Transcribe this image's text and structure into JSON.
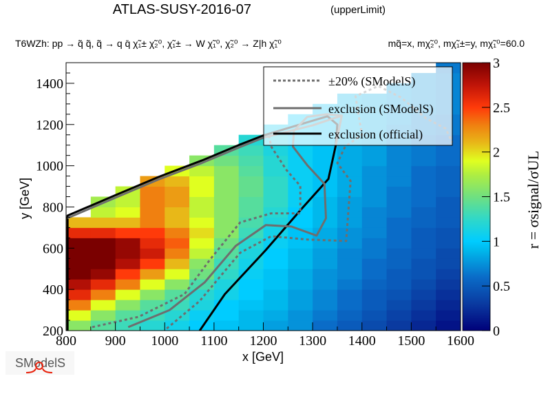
{
  "chart_data": {
    "type": "heatmap",
    "title": "ATLAS-SUSY-2016-07",
    "title_suffix": "(upperLimit)",
    "subtitle": "T6WZh: pp  → q̃ q̃, q̃  → q q̄ χ̃₁± χ̃₂⁰, χ̃₁± → W χ̃₁⁰, χ̃₂⁰ → Z|h  χ̃₁⁰",
    "mass_text": "mq̃=x, mχ̃₂⁰, mχ̃₁±=y, mχ̃₁⁰=60.0",
    "xlabel": "x [GeV]",
    "ylabel": "y [GeV]",
    "zlabel": "r = σsignal/σUL",
    "xlim": [
      800,
      1600
    ],
    "ylim": [
      200,
      1500
    ],
    "zlim": [
      0,
      3
    ],
    "xticks": [
      800,
      900,
      1000,
      1100,
      1200,
      1300,
      1400,
      1500,
      1600
    ],
    "yticks": [
      200,
      400,
      600,
      800,
      1000,
      1200,
      1400
    ],
    "zticks": [
      "0",
      "0.5",
      "1",
      "1.5",
      "2",
      "2.5",
      "3"
    ],
    "bin_size": 50,
    "x_centers": [
      825,
      875,
      925,
      975,
      1025,
      1075,
      1125,
      1175,
      1225,
      1275,
      1325,
      1375,
      1425,
      1475,
      1525,
      1575
    ],
    "y_centers": [
      225,
      275,
      325,
      375,
      425,
      475,
      525,
      575,
      625,
      675,
      725,
      775,
      825,
      875,
      925,
      975,
      1025,
      1075,
      1125,
      1175,
      1225,
      1275,
      1325,
      1375,
      1425,
      1475
    ],
    "z": [
      [
        1.6,
        1.4,
        1.3,
        1.2,
        1.1,
        1.0,
        0.95,
        0.9,
        0.8,
        0.75,
        0.6,
        0.5,
        0.4,
        0.3,
        0.2,
        0.1
      ],
      [
        1.9,
        1.6,
        1.4,
        1.3,
        1.2,
        1.05,
        1.0,
        0.9,
        0.85,
        0.75,
        0.65,
        0.55,
        0.45,
        0.35,
        0.25,
        0.15
      ],
      [
        2.3,
        1.9,
        1.6,
        1.4,
        1.3,
        1.15,
        1.0,
        0.95,
        0.9,
        0.8,
        0.7,
        0.6,
        0.5,
        0.4,
        0.3,
        0.2
      ],
      [
        2.6,
        2.3,
        1.9,
        1.6,
        1.4,
        1.2,
        1.1,
        1.0,
        0.9,
        0.8,
        0.7,
        0.6,
        0.5,
        0.45,
        0.35,
        0.25
      ],
      [
        2.8,
        2.6,
        2.3,
        1.9,
        1.6,
        1.35,
        1.15,
        1.0,
        0.95,
        0.85,
        0.75,
        0.65,
        0.55,
        0.5,
        0.4,
        0.3
      ],
      [
        3.0,
        2.9,
        2.5,
        2.2,
        1.9,
        1.5,
        1.25,
        1.05,
        0.95,
        0.85,
        0.75,
        0.7,
        0.6,
        0.5,
        0.45,
        0.35
      ],
      [
        3.0,
        3.0,
        2.8,
        2.5,
        2.1,
        1.6,
        1.3,
        1.1,
        1.0,
        0.9,
        0.8,
        0.7,
        0.6,
        0.55,
        0.45,
        0.4
      ],
      [
        3.0,
        3.0,
        2.9,
        2.7,
        2.3,
        1.8,
        1.4,
        1.15,
        1.0,
        0.9,
        0.8,
        0.7,
        0.65,
        0.55,
        0.5,
        0.4
      ],
      [
        3.0,
        3.0,
        2.9,
        2.6,
        2.4,
        1.9,
        1.5,
        1.2,
        1.05,
        0.95,
        0.85,
        0.75,
        0.65,
        0.6,
        0.5,
        0.45
      ],
      [
        2.6,
        2.6,
        2.5,
        2.5,
        2.3,
        2.0,
        1.6,
        1.3,
        1.1,
        0.95,
        0.85,
        0.75,
        0.7,
        0.6,
        0.5,
        0.45
      ],
      [
        2.1,
        2.1,
        2.1,
        2.3,
        2.1,
        1.9,
        1.6,
        1.35,
        1.15,
        1.0,
        0.9,
        0.8,
        0.7,
        0.6,
        0.55,
        0.5
      ],
      [
        null,
        1.8,
        1.9,
        2.3,
        2.1,
        1.8,
        1.6,
        1.4,
        1.2,
        1.0,
        0.9,
        0.8,
        0.7,
        0.65,
        0.55,
        0.5
      ],
      [
        null,
        1.7,
        1.8,
        2.3,
        2.2,
        1.8,
        1.6,
        1.4,
        1.25,
        1.05,
        0.9,
        0.8,
        0.75,
        0.65,
        0.6,
        0.5
      ],
      [
        null,
        null,
        1.8,
        2.3,
        2.2,
        1.9,
        1.6,
        1.45,
        1.25,
        1.05,
        0.95,
        0.85,
        0.75,
        0.65,
        0.6,
        0.55
      ],
      [
        null,
        null,
        null,
        2.2,
        2.1,
        1.9,
        1.6,
        1.45,
        1.25,
        1.05,
        0.95,
        0.85,
        0.75,
        0.7,
        0.6,
        0.55
      ],
      [
        null,
        null,
        null,
        null,
        1.9,
        1.8,
        1.6,
        1.4,
        1.2,
        1.05,
        0.95,
        0.85,
        0.75,
        0.7,
        0.6,
        0.55
      ],
      [
        null,
        null,
        null,
        null,
        null,
        1.6,
        1.5,
        1.35,
        1.2,
        1.05,
        0.95,
        0.85,
        0.8,
        0.7,
        0.65,
        0.6
      ],
      [
        null,
        null,
        null,
        null,
        null,
        null,
        1.4,
        1.3,
        1.15,
        1.05,
        0.95,
        0.85,
        0.8,
        0.7,
        0.65,
        0.6
      ],
      [
        null,
        null,
        null,
        null,
        null,
        null,
        null,
        1.2,
        1.1,
        1.0,
        0.95,
        0.9,
        0.85,
        0.75,
        0.65,
        0.6
      ],
      [
        null,
        null,
        null,
        null,
        null,
        null,
        null,
        null,
        1.05,
        1.0,
        0.95,
        0.9,
        0.85,
        0.75,
        0.7,
        0.65
      ],
      [
        null,
        null,
        null,
        null,
        null,
        null,
        null,
        null,
        null,
        1.0,
        0.95,
        0.9,
        0.85,
        0.8,
        0.7,
        0.65
      ],
      [
        null,
        null,
        null,
        null,
        null,
        null,
        null,
        null,
        null,
        null,
        0.95,
        0.9,
        0.85,
        0.8,
        0.75,
        0.7
      ],
      [
        null,
        null,
        null,
        null,
        null,
        null,
        null,
        null,
        null,
        null,
        null,
        0.9,
        0.85,
        0.8,
        0.75,
        0.7
      ],
      [
        null,
        null,
        null,
        null,
        null,
        null,
        null,
        null,
        null,
        null,
        null,
        null,
        null,
        0.8,
        0.75,
        0.7
      ],
      [
        null,
        null,
        null,
        null,
        null,
        null,
        null,
        null,
        null,
        null,
        null,
        null,
        null,
        null,
        0.75,
        0.7
      ],
      [
        null,
        null,
        null,
        null,
        null,
        null,
        null,
        null,
        null,
        null,
        null,
        null,
        null,
        null,
        null,
        0.65
      ]
    ],
    "contours": [
      {
        "name": "exclusion (official)",
        "style": "solid",
        "color": "#000000",
        "points": [
          [
            1071,
            200
          ],
          [
            1122,
            377
          ],
          [
            1205,
            591
          ],
          [
            1278,
            792
          ],
          [
            1332,
            936
          ],
          [
            1347,
            1100
          ],
          [
            1350,
            1200
          ],
          [
            1330,
            1240
          ],
          [
            1260,
            1190
          ],
          [
            1200,
            1147
          ],
          [
            1153,
            1103
          ],
          [
            1076,
            1026
          ],
          [
            988,
            946
          ],
          [
            895,
            852
          ],
          [
            803,
            758
          ],
          [
            803,
            200
          ]
        ]
      },
      {
        "name": "exclusion (SModelS)",
        "style": "solid",
        "color": "#6e6e6e",
        "points": [
          [
            926,
            217
          ],
          [
            1010,
            300
          ],
          [
            1081,
            434
          ],
          [
            1144,
            611
          ],
          [
            1205,
            712
          ],
          [
            1257,
            705
          ],
          [
            1308,
            661
          ],
          [
            1327,
            745
          ],
          [
            1324,
            912
          ],
          [
            1289,
            1003
          ],
          [
            1260,
            1093
          ],
          [
            1262,
            1170
          ],
          [
            1289,
            1237
          ],
          [
            1329,
            1250
          ],
          [
            1359,
            1243
          ],
          [
            1353,
            1170
          ],
          [
            1347,
            1100
          ]
        ]
      },
      {
        "name": "exclusion (SModelS) upper edge",
        "style": "solid",
        "color": "#6e6e6e",
        "points": [
          [
            803,
            746
          ],
          [
            895,
            840
          ],
          [
            988,
            934
          ],
          [
            1076,
            1014
          ],
          [
            1153,
            1091
          ],
          [
            1200,
            1136
          ],
          [
            1300,
            1196
          ],
          [
            1359,
            1243
          ]
        ]
      },
      {
        "name": "-20% (SModelS)",
        "style": "dashed",
        "color": "#6e6e6e",
        "points": [
          [
            853,
            217
          ],
          [
            947,
            267
          ],
          [
            1040,
            377
          ],
          [
            1092,
            545
          ],
          [
            1153,
            725
          ],
          [
            1216,
            769
          ],
          [
            1275,
            769
          ],
          [
            1275,
            902
          ],
          [
            1247,
            979
          ],
          [
            1216,
            1093
          ],
          [
            1210,
            1160
          ]
        ]
      },
      {
        "name": "+20% (SModelS)",
        "style": "dashed",
        "color": "#6e6e6e",
        "points": [
          [
            1004,
            210
          ],
          [
            1071,
            344
          ],
          [
            1153,
            578
          ],
          [
            1216,
            658
          ],
          [
            1289,
            642
          ],
          [
            1368,
            635
          ],
          [
            1377,
            926
          ],
          [
            1350,
            1013
          ],
          [
            1366,
            1093
          ],
          [
            1400,
            1150
          ],
          [
            1387,
            1337
          ],
          [
            1433,
            1387
          ],
          [
            1480,
            1330
          ],
          [
            1530,
            1230
          ],
          [
            1570,
            1180
          ],
          [
            1583,
            1113
          ]
        ]
      }
    ],
    "legend": {
      "placement": "top-right",
      "entries": [
        {
          "label": "±20% (SModelS)",
          "style": "dashed",
          "color": "#6e6e6e"
        },
        {
          "label": "exclusion (SModelS)",
          "style": "solid",
          "color": "#6e6e6e"
        },
        {
          "label": "exclusion (official)",
          "style": "solid",
          "color": "#000000"
        }
      ]
    },
    "colormap": [
      [
        0,
        "#00007a"
      ],
      [
        0.3,
        "#0a3aa0"
      ],
      [
        0.6,
        "#0a6cc8"
      ],
      [
        0.9,
        "#00b8ec"
      ],
      [
        1.0,
        "#00ccff"
      ],
      [
        1.25,
        "#30d8c8"
      ],
      [
        1.5,
        "#70e080"
      ],
      [
        1.75,
        "#b0ee40"
      ],
      [
        1.9,
        "#e0ff20"
      ],
      [
        2.1,
        "#e8b818"
      ],
      [
        2.3,
        "#f08010"
      ],
      [
        2.5,
        "#ff3a0a"
      ],
      [
        2.75,
        "#c01408"
      ],
      [
        3.0,
        "#7a0000"
      ]
    ]
  },
  "logo": {
    "text": "SModelS"
  }
}
